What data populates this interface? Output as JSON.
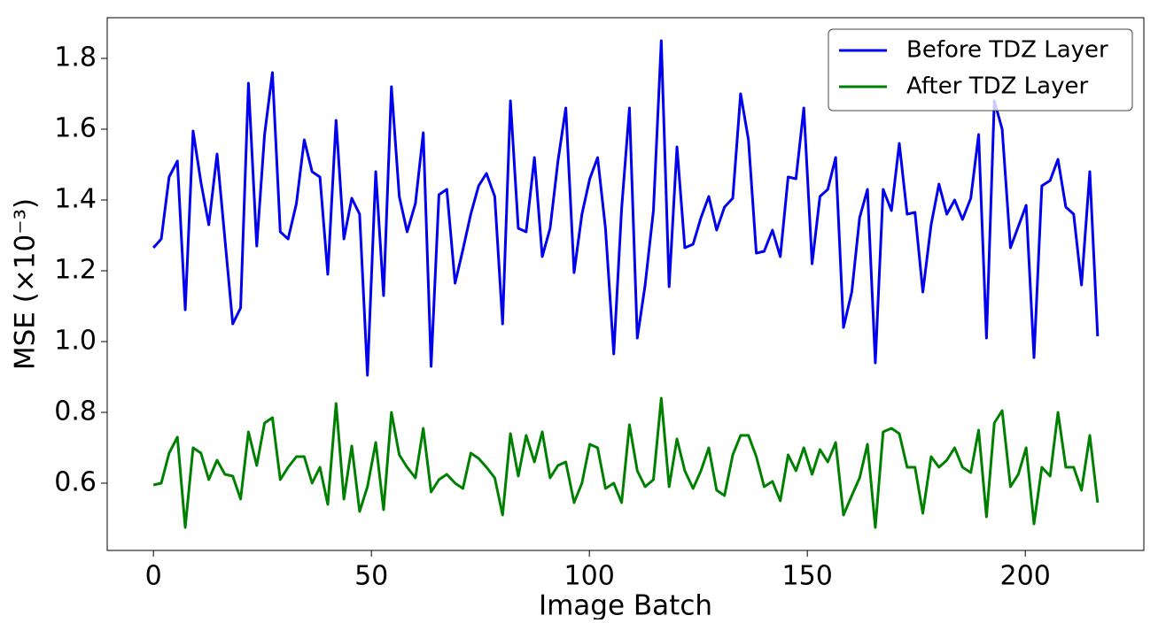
{
  "chart_data": {
    "type": "line",
    "xlabel": "Image Batch",
    "ylabel": "MSE (×10⁻³)",
    "x": [
      0,
      1.8,
      3.6,
      5.5,
      7.3,
      9.1,
      10.9,
      12.7,
      14.6,
      16.4,
      18.2,
      20.0,
      21.8,
      23.7,
      25.5,
      27.3,
      29.1,
      30.9,
      32.8,
      34.6,
      36.4,
      38.2,
      40.0,
      41.9,
      43.7,
      45.5,
      47.3,
      49.1,
      51.0,
      52.8,
      54.6,
      56.4,
      58.2,
      60.1,
      61.9,
      63.7,
      65.5,
      67.3,
      69.2,
      71.0,
      72.8,
      74.6,
      76.4,
      78.3,
      80.1,
      81.9,
      83.7,
      85.5,
      87.4,
      89.2,
      91.0,
      92.8,
      94.6,
      96.5,
      98.3,
      100.1,
      101.9,
      103.7,
      105.6,
      107.4,
      109.2,
      111.0,
      112.8,
      114.7,
      116.5,
      118.3,
      120.1,
      121.9,
      123.8,
      125.6,
      127.4,
      129.2,
      131.0,
      132.9,
      134.7,
      136.5,
      138.3,
      140.1,
      142.0,
      143.8,
      145.6,
      147.4,
      149.2,
      151.1,
      152.9,
      154.7,
      156.5,
      158.3,
      160.2,
      162.0,
      163.8,
      165.6,
      167.4,
      169.3,
      171.1,
      172.9,
      174.7,
      176.5,
      178.4,
      180.2,
      182.0,
      183.8,
      185.6,
      187.5,
      189.3,
      191.1,
      192.9,
      194.7,
      196.6,
      198.4,
      200.2,
      202.0,
      203.8,
      205.7,
      207.5,
      209.3,
      211.1,
      212.9,
      214.8,
      216.6
    ],
    "series": [
      {
        "name": "Before TDZ Layer",
        "color": "#0000ee",
        "values": [
          1.265,
          1.29,
          1.465,
          1.51,
          1.09,
          1.595,
          1.45,
          1.33,
          1.53,
          1.29,
          1.05,
          1.095,
          1.73,
          1.27,
          1.585,
          1.76,
          1.31,
          1.29,
          1.39,
          1.57,
          1.48,
          1.465,
          1.19,
          1.625,
          1.29,
          1.405,
          1.36,
          0.905,
          1.48,
          1.13,
          1.72,
          1.41,
          1.31,
          1.39,
          1.59,
          0.93,
          1.415,
          1.43,
          1.165,
          1.26,
          1.36,
          1.44,
          1.475,
          1.41,
          1.05,
          1.68,
          1.32,
          1.31,
          1.52,
          1.24,
          1.32,
          1.51,
          1.66,
          1.195,
          1.36,
          1.46,
          1.52,
          1.32,
          0.965,
          1.375,
          1.66,
          1.01,
          1.16,
          1.37,
          1.85,
          1.155,
          1.55,
          1.265,
          1.275,
          1.35,
          1.41,
          1.315,
          1.38,
          1.405,
          1.7,
          1.57,
          1.25,
          1.255,
          1.315,
          1.24,
          1.465,
          1.46,
          1.66,
          1.22,
          1.41,
          1.43,
          1.52,
          1.04,
          1.14,
          1.35,
          1.43,
          0.94,
          1.43,
          1.37,
          1.56,
          1.36,
          1.365,
          1.14,
          1.33,
          1.445,
          1.36,
          1.4,
          1.345,
          1.405,
          1.585,
          1.01,
          1.68,
          1.6,
          1.265,
          1.325,
          1.385,
          0.955,
          1.44,
          1.455,
          1.515,
          1.38,
          1.36,
          1.16,
          1.48,
          1.015
        ]
      },
      {
        "name": "After TDZ Layer",
        "color": "#008000",
        "values": [
          0.595,
          0.6,
          0.685,
          0.73,
          0.475,
          0.7,
          0.685,
          0.61,
          0.665,
          0.625,
          0.62,
          0.555,
          0.745,
          0.65,
          0.77,
          0.785,
          0.61,
          0.645,
          0.675,
          0.675,
          0.6,
          0.645,
          0.54,
          0.825,
          0.555,
          0.705,
          0.52,
          0.59,
          0.715,
          0.525,
          0.8,
          0.68,
          0.645,
          0.615,
          0.755,
          0.575,
          0.61,
          0.625,
          0.6,
          0.585,
          0.685,
          0.67,
          0.645,
          0.615,
          0.51,
          0.74,
          0.62,
          0.735,
          0.66,
          0.745,
          0.615,
          0.65,
          0.66,
          0.545,
          0.6,
          0.71,
          0.7,
          0.585,
          0.6,
          0.545,
          0.765,
          0.635,
          0.59,
          0.61,
          0.84,
          0.59,
          0.725,
          0.635,
          0.585,
          0.635,
          0.7,
          0.58,
          0.565,
          0.68,
          0.735,
          0.735,
          0.675,
          0.59,
          0.605,
          0.55,
          0.68,
          0.635,
          0.7,
          0.625,
          0.695,
          0.66,
          0.715,
          0.51,
          0.565,
          0.615,
          0.71,
          0.475,
          0.745,
          0.755,
          0.74,
          0.645,
          0.645,
          0.515,
          0.675,
          0.645,
          0.665,
          0.7,
          0.645,
          0.63,
          0.75,
          0.505,
          0.77,
          0.805,
          0.59,
          0.625,
          0.7,
          0.485,
          0.645,
          0.62,
          0.8,
          0.645,
          0.645,
          0.58,
          0.735,
          0.545
        ]
      }
    ],
    "xlim": [
      -10.6,
      227.2
    ],
    "ylim": [
      0.41,
      1.915
    ],
    "xticks": [
      0,
      50,
      100,
      150,
      200
    ],
    "yticks": [
      0.6,
      0.8,
      {
        "value": 1.0,
        "label": "1.0"
      },
      1.2,
      1.4,
      1.6,
      1.8
    ],
    "legend": "upper right"
  }
}
